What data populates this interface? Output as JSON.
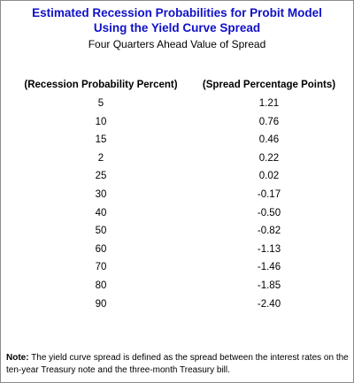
{
  "header": {
    "title": [
      "Estimated Recession Probabilities for Probit Model",
      "Using the Yield Curve Spread"
    ],
    "subtitle": "Four Quarters Ahead Value of Spread"
  },
  "table": {
    "columns": [
      "(Recession Probability Percent)",
      "(Spread Percentage Points)"
    ],
    "rows": [
      [
        "5",
        "1.21"
      ],
      [
        "10",
        "0.76"
      ],
      [
        "15",
        "0.46"
      ],
      [
        "2",
        "0.22"
      ],
      [
        "25",
        "0.02"
      ],
      [
        "30",
        "-0.17"
      ],
      [
        "40",
        "-0.50"
      ],
      [
        "50",
        "-0.82"
      ],
      [
        "60",
        "-1.13"
      ],
      [
        "70",
        "-1.46"
      ],
      [
        "80",
        "-1.85"
      ],
      [
        "90",
        "-2.40"
      ]
    ]
  },
  "note": {
    "label": "Note:",
    "text": "The yield curve spread is defined as the spread between the interest rates on the ten-year Treasury note and the three-month Treasury bill."
  }
}
